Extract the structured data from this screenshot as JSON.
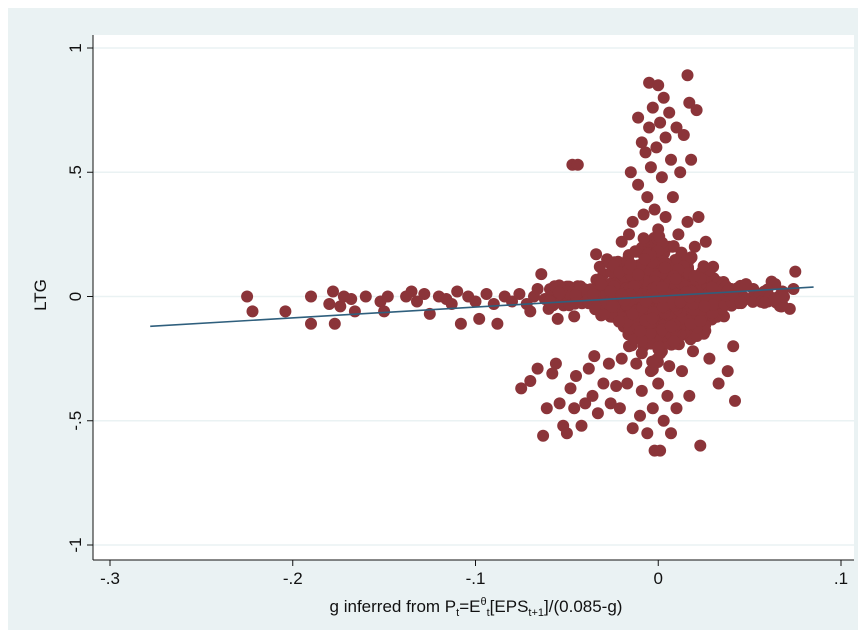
{
  "chart_data": {
    "type": "scatter",
    "title": "",
    "ylabel": "LTG",
    "xlabel": {
      "base": "g inferred from P",
      "p_sub": "t",
      "mid": "=E",
      "e_sup": "θ",
      "e_sub": "t",
      "eps": "[EPS",
      "eps_sub": "t+1",
      "tail": "]/(0.085-g)"
    },
    "xlim": [
      -0.3,
      0.1
    ],
    "ylim": [
      -1,
      1
    ],
    "x_ticks": [
      -0.3,
      -0.2,
      -0.1,
      0,
      0.1
    ],
    "x_tick_labels": [
      "-.3",
      "-.2",
      "-.1",
      "0",
      ".1"
    ],
    "y_ticks": [
      -1,
      -0.5,
      0,
      0.5,
      1
    ],
    "y_tick_labels": [
      "-1",
      "-.5",
      "0",
      ".5",
      "1"
    ],
    "grid": "horizontal",
    "point_color": "#8b3439",
    "line_color": "#2f5f7d",
    "frame_color": "#eaf2f3",
    "fit_line": {
      "x": [
        -0.278,
        0.085
      ],
      "y": [
        -0.12,
        0.038
      ]
    },
    "points": [
      [
        -0.225,
        0.0
      ],
      [
        -0.222,
        -0.06
      ],
      [
        -0.204,
        -0.06
      ],
      [
        -0.19,
        0.0
      ],
      [
        -0.19,
        -0.11
      ],
      [
        -0.18,
        -0.03
      ],
      [
        -0.178,
        0.02
      ],
      [
        -0.177,
        -0.11
      ],
      [
        -0.174,
        -0.04
      ],
      [
        -0.172,
        0.0
      ],
      [
        -0.168,
        -0.01
      ],
      [
        -0.166,
        -0.06
      ],
      [
        -0.16,
        0.0
      ],
      [
        -0.152,
        -0.02
      ],
      [
        -0.15,
        -0.06
      ],
      [
        -0.148,
        0.0
      ],
      [
        -0.138,
        0.0
      ],
      [
        -0.135,
        0.02
      ],
      [
        -0.132,
        -0.02
      ],
      [
        -0.128,
        0.01
      ],
      [
        -0.125,
        -0.07
      ],
      [
        -0.12,
        0.0
      ],
      [
        -0.116,
        -0.01
      ],
      [
        -0.113,
        -0.03
      ],
      [
        -0.11,
        0.02
      ],
      [
        -0.108,
        -0.11
      ],
      [
        -0.104,
        0.0
      ],
      [
        -0.1,
        -0.02
      ],
      [
        -0.098,
        -0.09
      ],
      [
        -0.094,
        0.01
      ],
      [
        -0.09,
        -0.03
      ],
      [
        -0.088,
        -0.11
      ],
      [
        -0.084,
        0.0
      ],
      [
        -0.08,
        -0.02
      ],
      [
        -0.076,
        0.01
      ],
      [
        -0.072,
        -0.03
      ],
      [
        -0.07,
        -0.06
      ],
      [
        -0.068,
        0.0
      ],
      [
        -0.066,
        0.03
      ],
      [
        -0.064,
        0.09
      ],
      [
        -0.062,
        -0.01
      ],
      [
        -0.06,
        -0.05
      ],
      [
        -0.058,
        0.02
      ],
      [
        -0.055,
        -0.09
      ],
      [
        -0.052,
        0.0
      ],
      [
        -0.05,
        0.04
      ],
      [
        -0.048,
        -0.03
      ],
      [
        -0.046,
        -0.08
      ],
      [
        -0.044,
        0.03
      ],
      [
        -0.075,
        -0.37
      ],
      [
        -0.07,
        -0.34
      ],
      [
        -0.066,
        -0.29
      ],
      [
        -0.063,
        -0.56
      ],
      [
        -0.061,
        -0.45
      ],
      [
        -0.058,
        -0.31
      ],
      [
        -0.056,
        -0.27
      ],
      [
        -0.054,
        -0.43
      ],
      [
        -0.052,
        -0.52
      ],
      [
        -0.05,
        -0.55
      ],
      [
        -0.048,
        -0.37
      ],
      [
        -0.047,
        0.53
      ],
      [
        -0.046,
        -0.45
      ],
      [
        -0.045,
        -0.32
      ],
      [
        -0.044,
        0.53
      ],
      [
        -0.042,
        -0.52
      ],
      [
        -0.04,
        -0.43
      ],
      [
        -0.038,
        -0.29
      ],
      [
        -0.036,
        -0.4
      ],
      [
        -0.035,
        -0.24
      ],
      [
        -0.034,
        0.17
      ],
      [
        -0.033,
        -0.47
      ],
      [
        -0.032,
        0.12
      ],
      [
        -0.03,
        -0.35
      ],
      [
        -0.03,
        0.09
      ],
      [
        -0.028,
        0.15
      ],
      [
        -0.027,
        -0.27
      ],
      [
        -0.026,
        -0.43
      ],
      [
        -0.025,
        0.05
      ],
      [
        -0.024,
        0.09
      ],
      [
        -0.023,
        -0.36
      ],
      [
        -0.022,
        0.14
      ],
      [
        -0.021,
        -0.45
      ],
      [
        -0.02,
        -0.25
      ],
      [
        -0.02,
        0.22
      ],
      [
        -0.019,
        0.1
      ],
      [
        -0.018,
        0.02
      ],
      [
        -0.018,
        -0.05
      ],
      [
        -0.017,
        -0.35
      ],
      [
        -0.016,
        0.25
      ],
      [
        -0.016,
        -0.2
      ],
      [
        -0.015,
        0.5
      ],
      [
        -0.015,
        0.02
      ],
      [
        -0.014,
        -0.53
      ],
      [
        -0.014,
        0.3
      ],
      [
        -0.013,
        -0.1
      ],
      [
        -0.012,
        0.18
      ],
      [
        -0.012,
        -0.27
      ],
      [
        -0.011,
        0.72
      ],
      [
        -0.011,
        0.45
      ],
      [
        -0.01,
        -0.04
      ],
      [
        -0.01,
        0.07
      ],
      [
        -0.01,
        -0.48
      ],
      [
        -0.009,
        0.62
      ],
      [
        -0.009,
        -0.38
      ],
      [
        -0.008,
        0.33
      ],
      [
        -0.008,
        0.0
      ],
      [
        -0.008,
        -0.2
      ],
      [
        -0.007,
        0.58
      ],
      [
        -0.007,
        0.12
      ],
      [
        -0.006,
        -0.55
      ],
      [
        -0.006,
        0.4
      ],
      [
        -0.006,
        -0.1
      ],
      [
        -0.005,
        0.86
      ],
      [
        -0.005,
        0.68
      ],
      [
        -0.005,
        0.22
      ],
      [
        -0.004,
        -0.3
      ],
      [
        -0.004,
        0.04
      ],
      [
        -0.004,
        0.52
      ],
      [
        -0.003,
        -0.45
      ],
      [
        -0.003,
        0.76
      ],
      [
        -0.003,
        0.15
      ],
      [
        -0.002,
        -0.62
      ],
      [
        -0.002,
        0.02
      ],
      [
        -0.002,
        0.35
      ],
      [
        -0.001,
        -0.15
      ],
      [
        -0.001,
        0.6
      ],
      [
        -0.001,
        -0.05
      ],
      [
        0.0,
        0.85
      ],
      [
        0.0,
        0.27
      ],
      [
        0.0,
        -0.35
      ],
      [
        0.0,
        0.05
      ],
      [
        0.001,
        0.7
      ],
      [
        0.001,
        -0.62
      ],
      [
        0.001,
        0.18
      ],
      [
        0.002,
        -0.22
      ],
      [
        0.002,
        0.48
      ],
      [
        0.002,
        0.0
      ],
      [
        0.003,
        0.8
      ],
      [
        0.003,
        -0.5
      ],
      [
        0.003,
        0.1
      ],
      [
        0.004,
        0.64
      ],
      [
        0.004,
        -0.1
      ],
      [
        0.004,
        0.32
      ],
      [
        0.005,
        -0.4
      ],
      [
        0.005,
        0.0
      ],
      [
        0.006,
        0.74
      ],
      [
        0.006,
        -0.28
      ],
      [
        0.006,
        0.2
      ],
      [
        0.007,
        0.55
      ],
      [
        0.007,
        -0.55
      ],
      [
        0.008,
        0.08
      ],
      [
        0.008,
        0.4
      ],
      [
        0.009,
        -0.18
      ],
      [
        0.01,
        0.68
      ],
      [
        0.01,
        0.02
      ],
      [
        0.01,
        -0.45
      ],
      [
        0.011,
        0.25
      ],
      [
        0.012,
        -0.05
      ],
      [
        0.012,
        0.5
      ],
      [
        0.013,
        -0.3
      ],
      [
        0.014,
        0.12
      ],
      [
        0.014,
        0.65
      ],
      [
        0.015,
        -0.12
      ],
      [
        0.016,
        0.3
      ],
      [
        0.016,
        0.89
      ],
      [
        0.017,
        -0.4
      ],
      [
        0.017,
        0.78
      ],
      [
        0.018,
        0.05
      ],
      [
        0.018,
        0.55
      ],
      [
        0.019,
        -0.22
      ],
      [
        0.02,
        0.2
      ],
      [
        0.02,
        -0.05
      ],
      [
        0.021,
        0.75
      ],
      [
        0.022,
        0.32
      ],
      [
        0.023,
        -0.6
      ],
      [
        0.024,
        0.1
      ],
      [
        0.025,
        -0.15
      ],
      [
        0.026,
        0.22
      ],
      [
        0.027,
        0.0
      ],
      [
        0.028,
        -0.25
      ],
      [
        0.03,
        0.12
      ],
      [
        0.031,
        -0.05
      ],
      [
        0.032,
        0.05
      ],
      [
        0.033,
        -0.35
      ],
      [
        0.034,
        0.02
      ],
      [
        0.036,
        -0.08
      ],
      [
        0.038,
        -0.3
      ],
      [
        0.04,
        0.03
      ],
      [
        0.041,
        -0.2
      ],
      [
        0.042,
        -0.42
      ],
      [
        0.044,
        0.0
      ],
      [
        0.046,
        -0.02
      ],
      [
        0.048,
        0.05
      ],
      [
        0.05,
        -0.01
      ],
      [
        0.052,
        0.03
      ],
      [
        0.055,
        0.0
      ],
      [
        0.058,
        0.02
      ],
      [
        0.06,
        -0.02
      ],
      [
        0.062,
        0.06
      ],
      [
        0.064,
        0.05
      ],
      [
        0.066,
        0.0
      ],
      [
        0.068,
        0.02
      ],
      [
        0.072,
        -0.05
      ],
      [
        0.074,
        0.03
      ],
      [
        0.075,
        0.1
      ]
    ]
  }
}
